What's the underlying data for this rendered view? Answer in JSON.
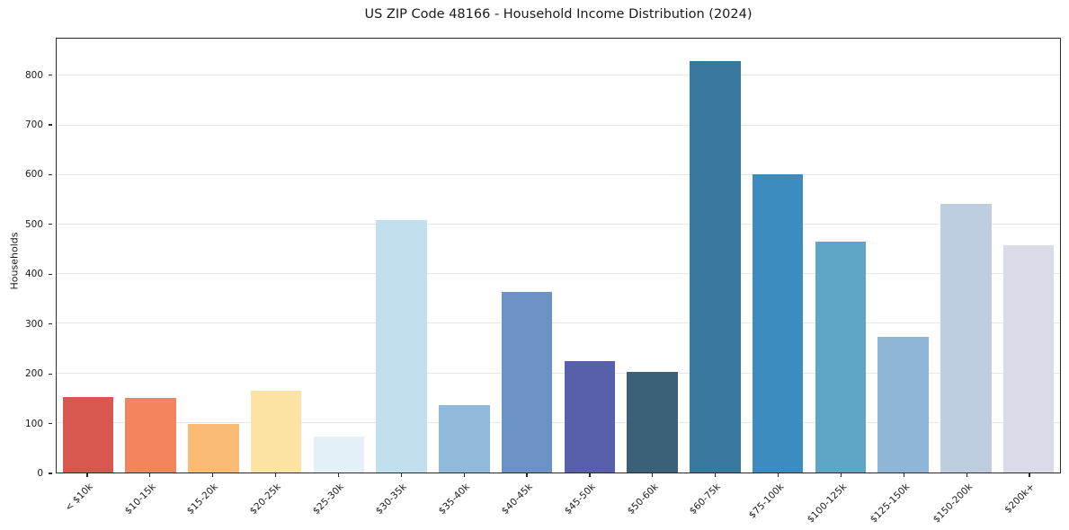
{
  "chart_data": {
    "type": "bar",
    "title": "US ZIP Code 48166 - Household Income Distribution (2024)",
    "xlabel": "",
    "ylabel": "Households",
    "categories": [
      "< $10k",
      "$10-15k",
      "$15-20k",
      "$20-25k",
      "$25-30k",
      "$30-35k",
      "$35-40k",
      "$40-45k",
      "$45-50k",
      "$50-60k",
      "$60-75k",
      "$75-100k",
      "$100-125k",
      "$125-150k",
      "$150-200k",
      "$200k+"
    ],
    "values": [
      153,
      150,
      97,
      164,
      73,
      509,
      135,
      365,
      224,
      203,
      830,
      602,
      465,
      273,
      541,
      458
    ],
    "bar_colors": [
      "#d8574f",
      "#f4845e",
      "#fabb75",
      "#fce3a4",
      "#e3f1f7",
      "#c1dfee",
      "#90badb",
      "#6a92c5",
      "#585fab",
      "#3b6078",
      "#38789f",
      "#3d8cc0",
      "#5ea5c6",
      "#8fb6d7",
      "#becde0",
      "#dadbe8"
    ],
    "ylim": [
      0,
      875
    ],
    "yticks": [
      0,
      100,
      200,
      300,
      400,
      500,
      600,
      700,
      800
    ],
    "grid": "horizontal",
    "gridline_color": "#e7e7ea",
    "legend": "none",
    "background": "#ffffff"
  }
}
